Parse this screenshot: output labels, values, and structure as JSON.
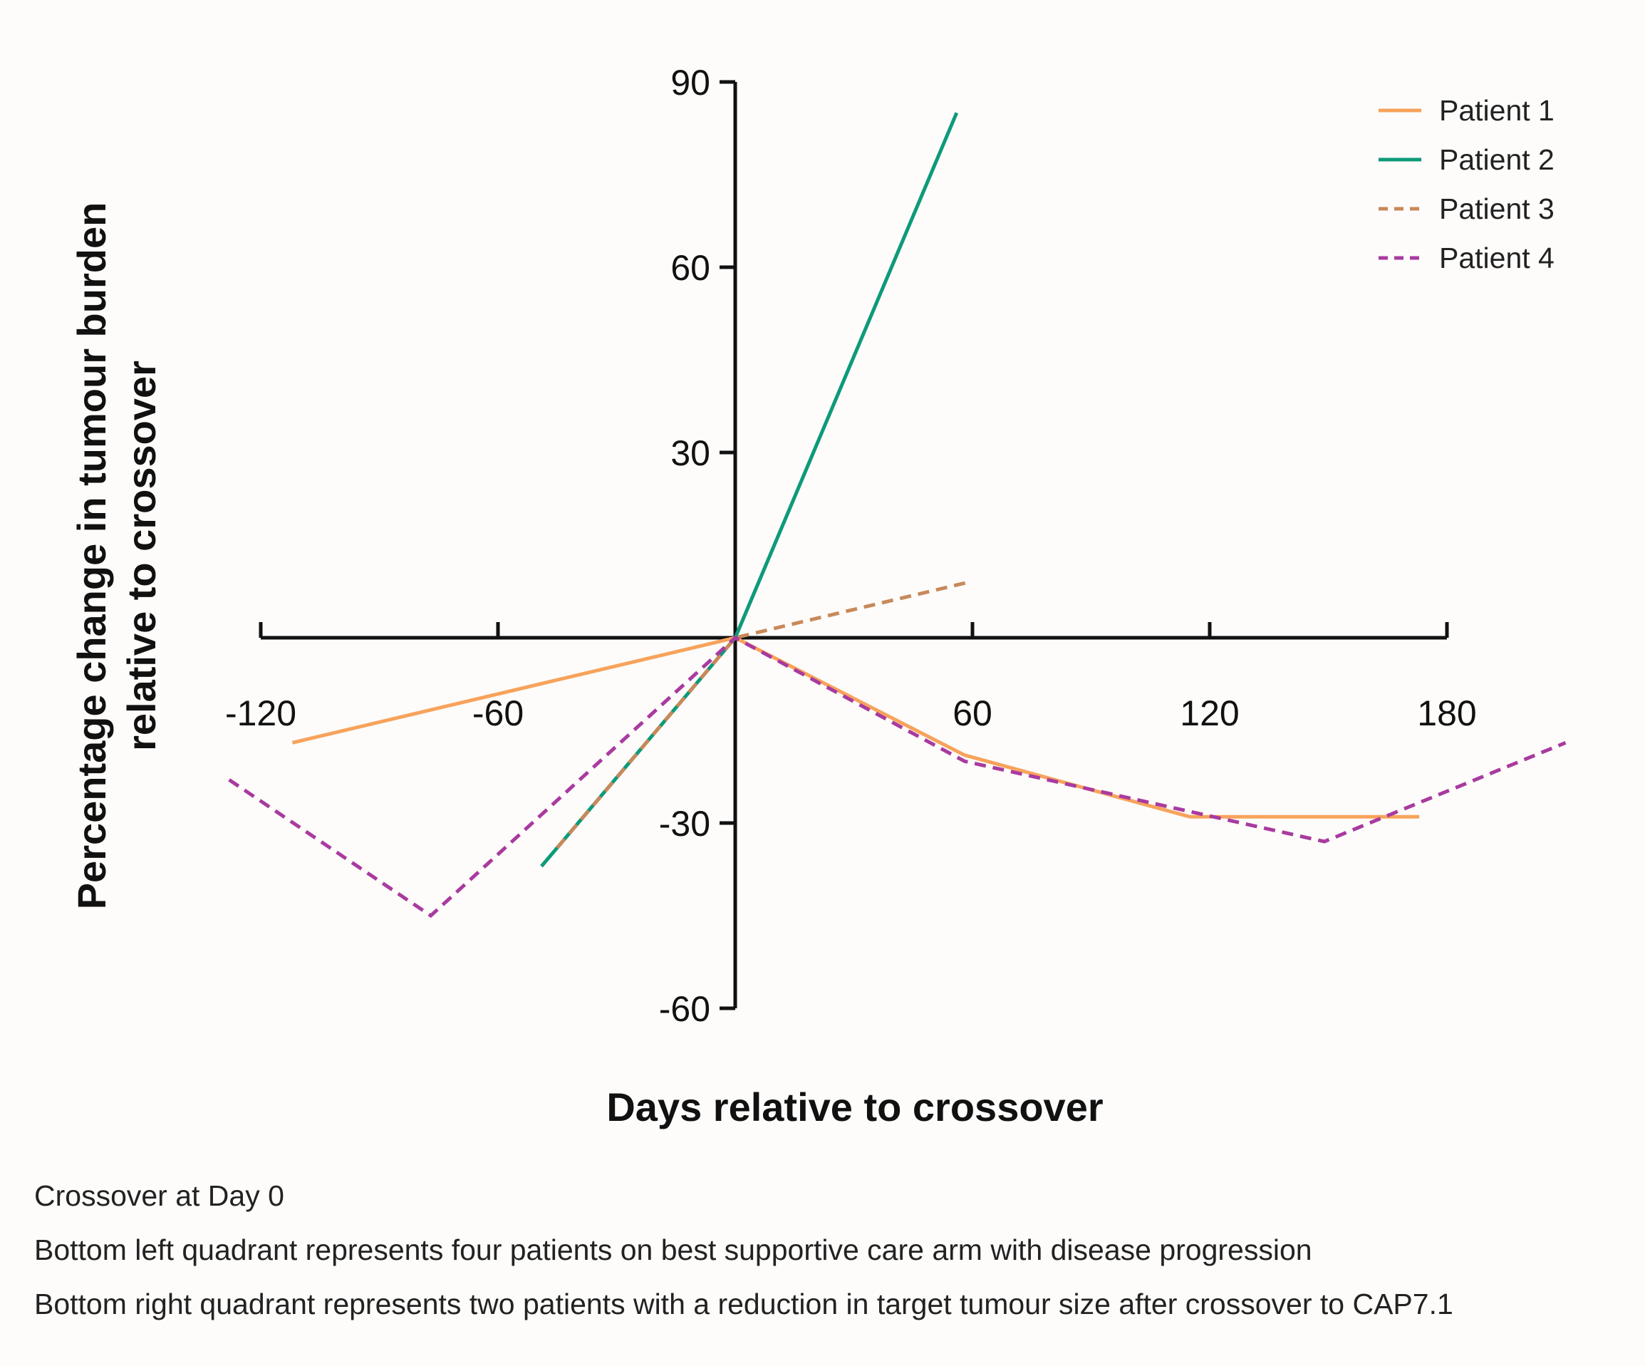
{
  "chart_data": {
    "type": "line",
    "title": "",
    "xlabel": "Days relative to crossover",
    "ylabel": "Percentage change in tumour burden relative to crossover",
    "ylabel_lines": [
      "Percentage change in tumour burden",
      "relative to crossover"
    ],
    "xlim": [
      -120,
      180
    ],
    "ylim": [
      -60,
      90
    ],
    "xticks": [
      -120,
      -60,
      60,
      120,
      180
    ],
    "yticks": [
      90,
      60,
      30,
      -30,
      -60
    ],
    "xtick_labels": [
      "-120",
      "-60",
      "60",
      "120",
      "180"
    ],
    "ytick_labels": [
      "90",
      "60",
      "30",
      "-30",
      "-60"
    ],
    "legend_position": "top-right",
    "series": [
      {
        "name": "Patient 1",
        "color": "#f7a35c",
        "style": "solid",
        "x": [
          -112,
          0,
          58,
          115,
          173
        ],
        "y": [
          -17,
          0,
          -19,
          -29,
          -29
        ]
      },
      {
        "name": "Patient 2",
        "color": "#0e9a7a",
        "style": "solid",
        "x": [
          -49,
          0,
          56
        ],
        "y": [
          -37,
          0,
          85
        ]
      },
      {
        "name": "Patient 3",
        "color": "#c8895a",
        "style": "dashed",
        "x": [
          -45,
          0,
          59
        ],
        "y": [
          -34,
          0,
          9
        ]
      },
      {
        "name": "Patient 4",
        "color": "#a93aa0",
        "style": "dashed",
        "x": [
          -128,
          -77,
          0,
          58,
          149,
          210
        ],
        "y": [
          -23,
          -45,
          0,
          -20,
          -33,
          -17
        ]
      }
    ]
  },
  "notes": [
    "Crossover at Day 0",
    "Bottom left quadrant represents four patients on best supportive care arm with disease progression",
    "Bottom right quadrant represents two patients with a reduction in target tumour size after crossover to CAP7.1"
  ]
}
